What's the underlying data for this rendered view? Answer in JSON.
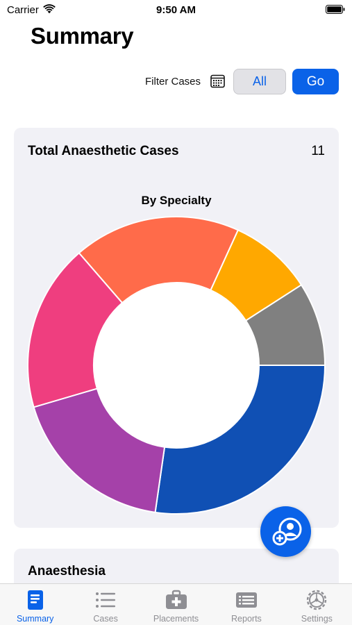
{
  "status_bar": {
    "carrier": "Carrier",
    "time": "9:50 AM"
  },
  "page": {
    "title": "Summary"
  },
  "filter": {
    "label": "Filter Cases",
    "all_label": "All",
    "go_label": "Go"
  },
  "summary_card": {
    "title": "Total Anaesthetic Cases",
    "count": "11",
    "chart_title": "By Specialty"
  },
  "chart_data": {
    "type": "pie",
    "title": "By Specialty",
    "donut": true,
    "slices": [
      {
        "value": 3,
        "color": "#1050b4"
      },
      {
        "value": 2,
        "color": "#a541a9"
      },
      {
        "value": 2,
        "color": "#ef3e7f"
      },
      {
        "value": 2,
        "color": "#ff6b4a"
      },
      {
        "value": 1,
        "color": "#ffa800"
      },
      {
        "value": 1,
        "color": "#808080"
      }
    ]
  },
  "anaesthesia_card": {
    "title": "Anaesthesia"
  },
  "fab": {
    "icon": "add-person-icon"
  },
  "tabs": [
    {
      "label": "Summary",
      "icon": "summary-icon",
      "active": true
    },
    {
      "label": "Cases",
      "icon": "list-icon",
      "active": false
    },
    {
      "label": "Placements",
      "icon": "medical-bag-icon",
      "active": false
    },
    {
      "label": "Reports",
      "icon": "report-icon",
      "active": false
    },
    {
      "label": "Settings",
      "icon": "gear-icon",
      "active": false
    }
  ],
  "colors": {
    "accent": "#0a62e8",
    "card_bg": "#f1f1f6",
    "inactive": "#8e8e93"
  }
}
